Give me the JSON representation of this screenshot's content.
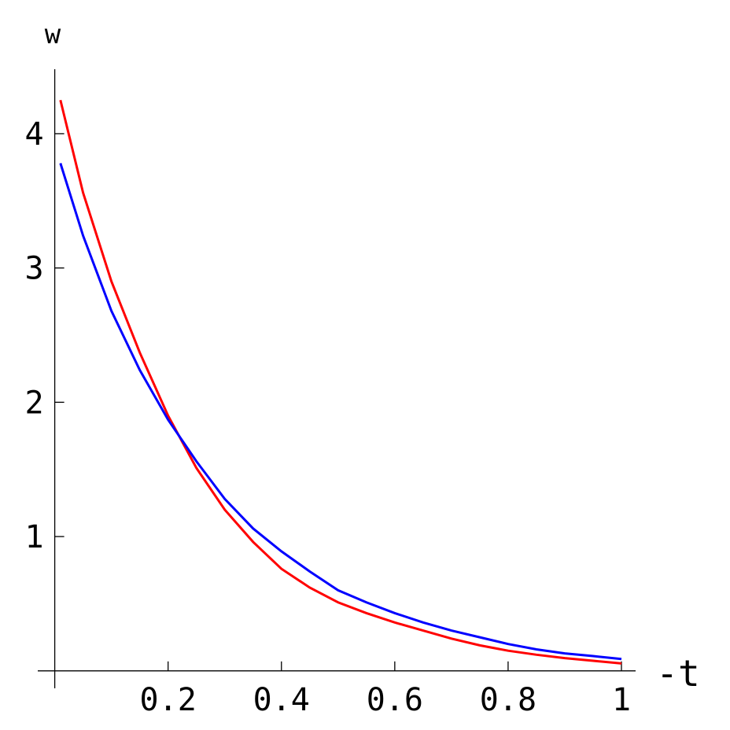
{
  "chart_data": {
    "type": "line",
    "y_label": "w",
    "x_label": "-t",
    "x": [
      0.01,
      0.05,
      0.1,
      0.15,
      0.2,
      0.25,
      0.3,
      0.35,
      0.4,
      0.45,
      0.5,
      0.55,
      0.6,
      0.65,
      0.7,
      0.75,
      0.8,
      0.85,
      0.9,
      0.95,
      1.0
    ],
    "series": [
      {
        "color": "#ff0000",
        "values": [
          4.25,
          3.56,
          2.9,
          2.37,
          1.9,
          1.51,
          1.2,
          0.96,
          0.76,
          0.62,
          0.51,
          0.43,
          0.36,
          0.3,
          0.24,
          0.19,
          0.15,
          0.12,
          0.095,
          0.075,
          0.055
        ]
      },
      {
        "color": "#0000ff",
        "values": [
          3.78,
          3.24,
          2.68,
          2.24,
          1.87,
          1.56,
          1.28,
          1.06,
          0.89,
          0.74,
          0.6,
          0.51,
          0.43,
          0.36,
          0.3,
          0.25,
          0.2,
          0.16,
          0.13,
          0.11,
          0.088
        ]
      }
    ],
    "xlim": [
      -0.03,
      1.025
    ],
    "ylim": [
      -0.13,
      4.48
    ],
    "xticks": [
      0.2,
      0.4,
      0.6,
      0.8,
      1
    ],
    "yticks": [
      1,
      2,
      3,
      4
    ]
  }
}
